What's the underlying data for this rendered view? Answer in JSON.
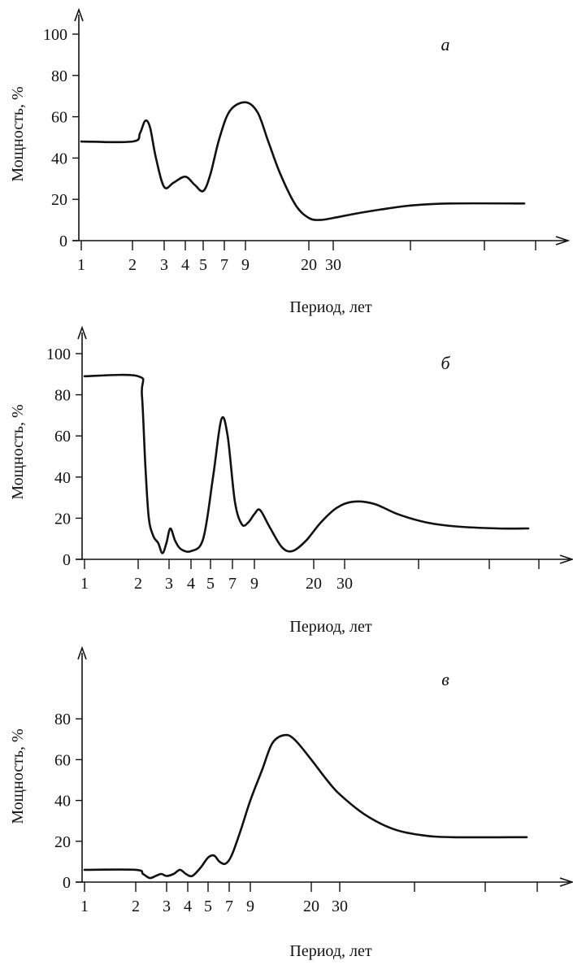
{
  "chart_data": [
    {
      "type": "line",
      "panel_label": "а",
      "xlabel": "Период, лет",
      "ylabel": "Мощность, %",
      "x_scale": "categorical-log",
      "x_tick_labels": [
        "1",
        "2",
        "3",
        "4",
        "5",
        "7",
        "9",
        "20",
        "30"
      ],
      "x_tick_values": [
        1,
        2,
        3,
        4,
        5,
        7,
        9,
        20,
        30
      ],
      "y_ticks": [
        0,
        20,
        40,
        60,
        80,
        100
      ],
      "ylim": [
        0,
        100
      ],
      "grid": false,
      "series": [
        {
          "points": [
            [
              1,
              48
            ],
            [
              2,
              48
            ],
            [
              2.2,
              52
            ],
            [
              2.35,
              58
            ],
            [
              2.5,
              55
            ],
            [
              2.7,
              40
            ],
            [
              3,
              26
            ],
            [
              3.4,
              28
            ],
            [
              4,
              31
            ],
            [
              4.5,
              27
            ],
            [
              5,
              24
            ],
            [
              5.6,
              32
            ],
            [
              6.5,
              50
            ],
            [
              7.5,
              63
            ],
            [
              9,
              67
            ],
            [
              10.5,
              62
            ],
            [
              12,
              48
            ],
            [
              14,
              32
            ],
            [
              17,
              17
            ],
            [
              20,
              11
            ],
            [
              24,
              10
            ],
            [
              30,
              11
            ],
            [
              38,
              13
            ],
            [
              50,
              15
            ],
            [
              70,
              17
            ],
            [
              100,
              18
            ],
            [
              200,
              18
            ]
          ]
        }
      ]
    },
    {
      "type": "line",
      "panel_label": "б",
      "xlabel": "Период, лет",
      "ylabel": "Мощность, %",
      "x_scale": "categorical-log",
      "x_tick_labels": [
        "1",
        "2",
        "3",
        "4",
        "5",
        "7",
        "9",
        "20",
        "30"
      ],
      "x_tick_values": [
        1,
        2,
        3,
        4,
        5,
        7,
        9,
        20,
        30
      ],
      "y_ticks": [
        0,
        20,
        40,
        60,
        80,
        100
      ],
      "ylim": [
        0,
        100
      ],
      "grid": false,
      "series": [
        {
          "points": [
            [
              1,
              89
            ],
            [
              2,
              89
            ],
            [
              2.1,
              80
            ],
            [
              2.2,
              45
            ],
            [
              2.3,
              20
            ],
            [
              2.45,
              11
            ],
            [
              2.6,
              8
            ],
            [
              2.75,
              3
            ],
            [
              2.9,
              8
            ],
            [
              3.05,
              15
            ],
            [
              3.25,
              9
            ],
            [
              3.5,
              5
            ],
            [
              4,
              4
            ],
            [
              4.6,
              10
            ],
            [
              5.2,
              40
            ],
            [
              5.9,
              68
            ],
            [
              6.5,
              60
            ],
            [
              7.2,
              28
            ],
            [
              7.8,
              17
            ],
            [
              8.4,
              18
            ],
            [
              9,
              22
            ],
            [
              9.7,
              24
            ],
            [
              11,
              16
            ],
            [
              13,
              6
            ],
            [
              15,
              4
            ],
            [
              18,
              9
            ],
            [
              22,
              18
            ],
            [
              27,
              25
            ],
            [
              33,
              28
            ],
            [
              42,
              27
            ],
            [
              55,
              22
            ],
            [
              75,
              18
            ],
            [
              100,
              16
            ],
            [
              150,
              15
            ],
            [
              200,
              15
            ]
          ]
        }
      ]
    },
    {
      "type": "line",
      "panel_label": "в",
      "xlabel": "Период, лет",
      "ylabel": "Мощность, %",
      "x_scale": "categorical-log",
      "x_tick_labels": [
        "1",
        "2",
        "3",
        "4",
        "5",
        "7",
        "9",
        "20",
        "30"
      ],
      "x_tick_values": [
        1,
        2,
        3,
        4,
        5,
        7,
        9,
        20,
        30
      ],
      "y_ticks": [
        0,
        20,
        40,
        60,
        80
      ],
      "ylim": [
        0,
        100
      ],
      "grid": false,
      "series": [
        {
          "points": [
            [
              1,
              6
            ],
            [
              2,
              6
            ],
            [
              2.2,
              4
            ],
            [
              2.4,
              2
            ],
            [
              2.6,
              3
            ],
            [
              2.8,
              4
            ],
            [
              3,
              3
            ],
            [
              3.3,
              4
            ],
            [
              3.6,
              6
            ],
            [
              3.9,
              4
            ],
            [
              4.2,
              3
            ],
            [
              4.6,
              7
            ],
            [
              5,
              12
            ],
            [
              5.5,
              13
            ],
            [
              6,
              10
            ],
            [
              6.6,
              9
            ],
            [
              7.2,
              13
            ],
            [
              8,
              25
            ],
            [
              9,
              40
            ],
            [
              10.5,
              55
            ],
            [
              12,
              68
            ],
            [
              14,
              72
            ],
            [
              16,
              70
            ],
            [
              20,
              60
            ],
            [
              25,
              50
            ],
            [
              30,
              43
            ],
            [
              40,
              33
            ],
            [
              55,
              26
            ],
            [
              75,
              23
            ],
            [
              100,
              22
            ],
            [
              200,
              22
            ]
          ]
        }
      ]
    }
  ]
}
